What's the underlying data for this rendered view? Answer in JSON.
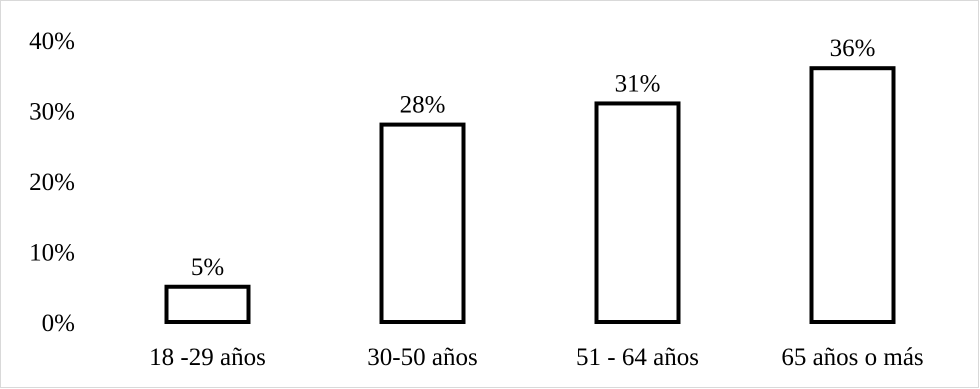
{
  "chart_data": {
    "type": "bar",
    "categories": [
      "18 -29 años",
      "30-50 años",
      "51 - 64 años",
      "65 años o más"
    ],
    "values": [
      5,
      28,
      31,
      36
    ],
    "data_labels": [
      "5%",
      "28%",
      "31%",
      "36%"
    ],
    "title": "",
    "xlabel": "",
    "ylabel": "",
    "ylim": [
      0,
      40
    ],
    "yticks": [
      0,
      10,
      20,
      30,
      40
    ],
    "ytick_labels": [
      "0%",
      "10%",
      "20%",
      "30%",
      "40%"
    ],
    "grid": false,
    "legend": "none",
    "bar_fill": "#ffffff",
    "bar_stroke": "#000000"
  }
}
